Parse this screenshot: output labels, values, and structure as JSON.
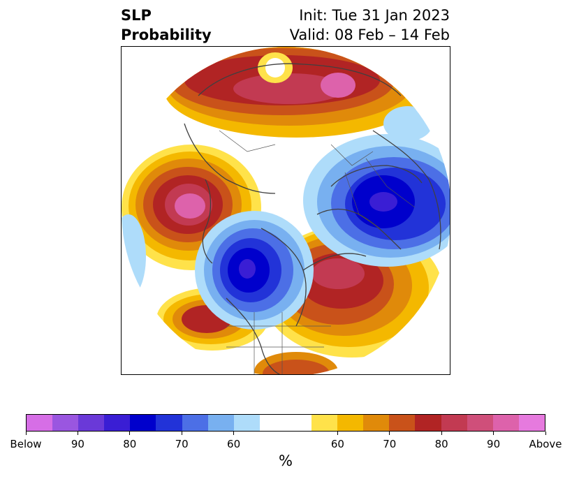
{
  "title": {
    "variable": "SLP",
    "quantity": "Probability",
    "init": "Init: Tue 31 Jan 2023",
    "valid": "Valid: 08 Feb – 14 Feb"
  },
  "map": {
    "projection": "polar-stereographic",
    "region": "Northern Hemisphere"
  },
  "colorbar": {
    "unit": "%",
    "colors": [
      "#d66ee6",
      "#9a56e0",
      "#6a39d8",
      "#3a1ed4",
      "#0000cc",
      "#2233d8",
      "#4c6fe6",
      "#78b0f0",
      "#aedcfa",
      "#ffffff",
      "#ffffff",
      "#ffe24a",
      "#f4b800",
      "#e08a0a",
      "#c9521a",
      "#b12424",
      "#c23a52",
      "#cf4f7a",
      "#dd62ab",
      "#e67ade"
    ],
    "labels": [
      "Below",
      "90",
      "80",
      "70",
      "60",
      "60",
      "70",
      "80",
      "90",
      "Above"
    ]
  }
}
